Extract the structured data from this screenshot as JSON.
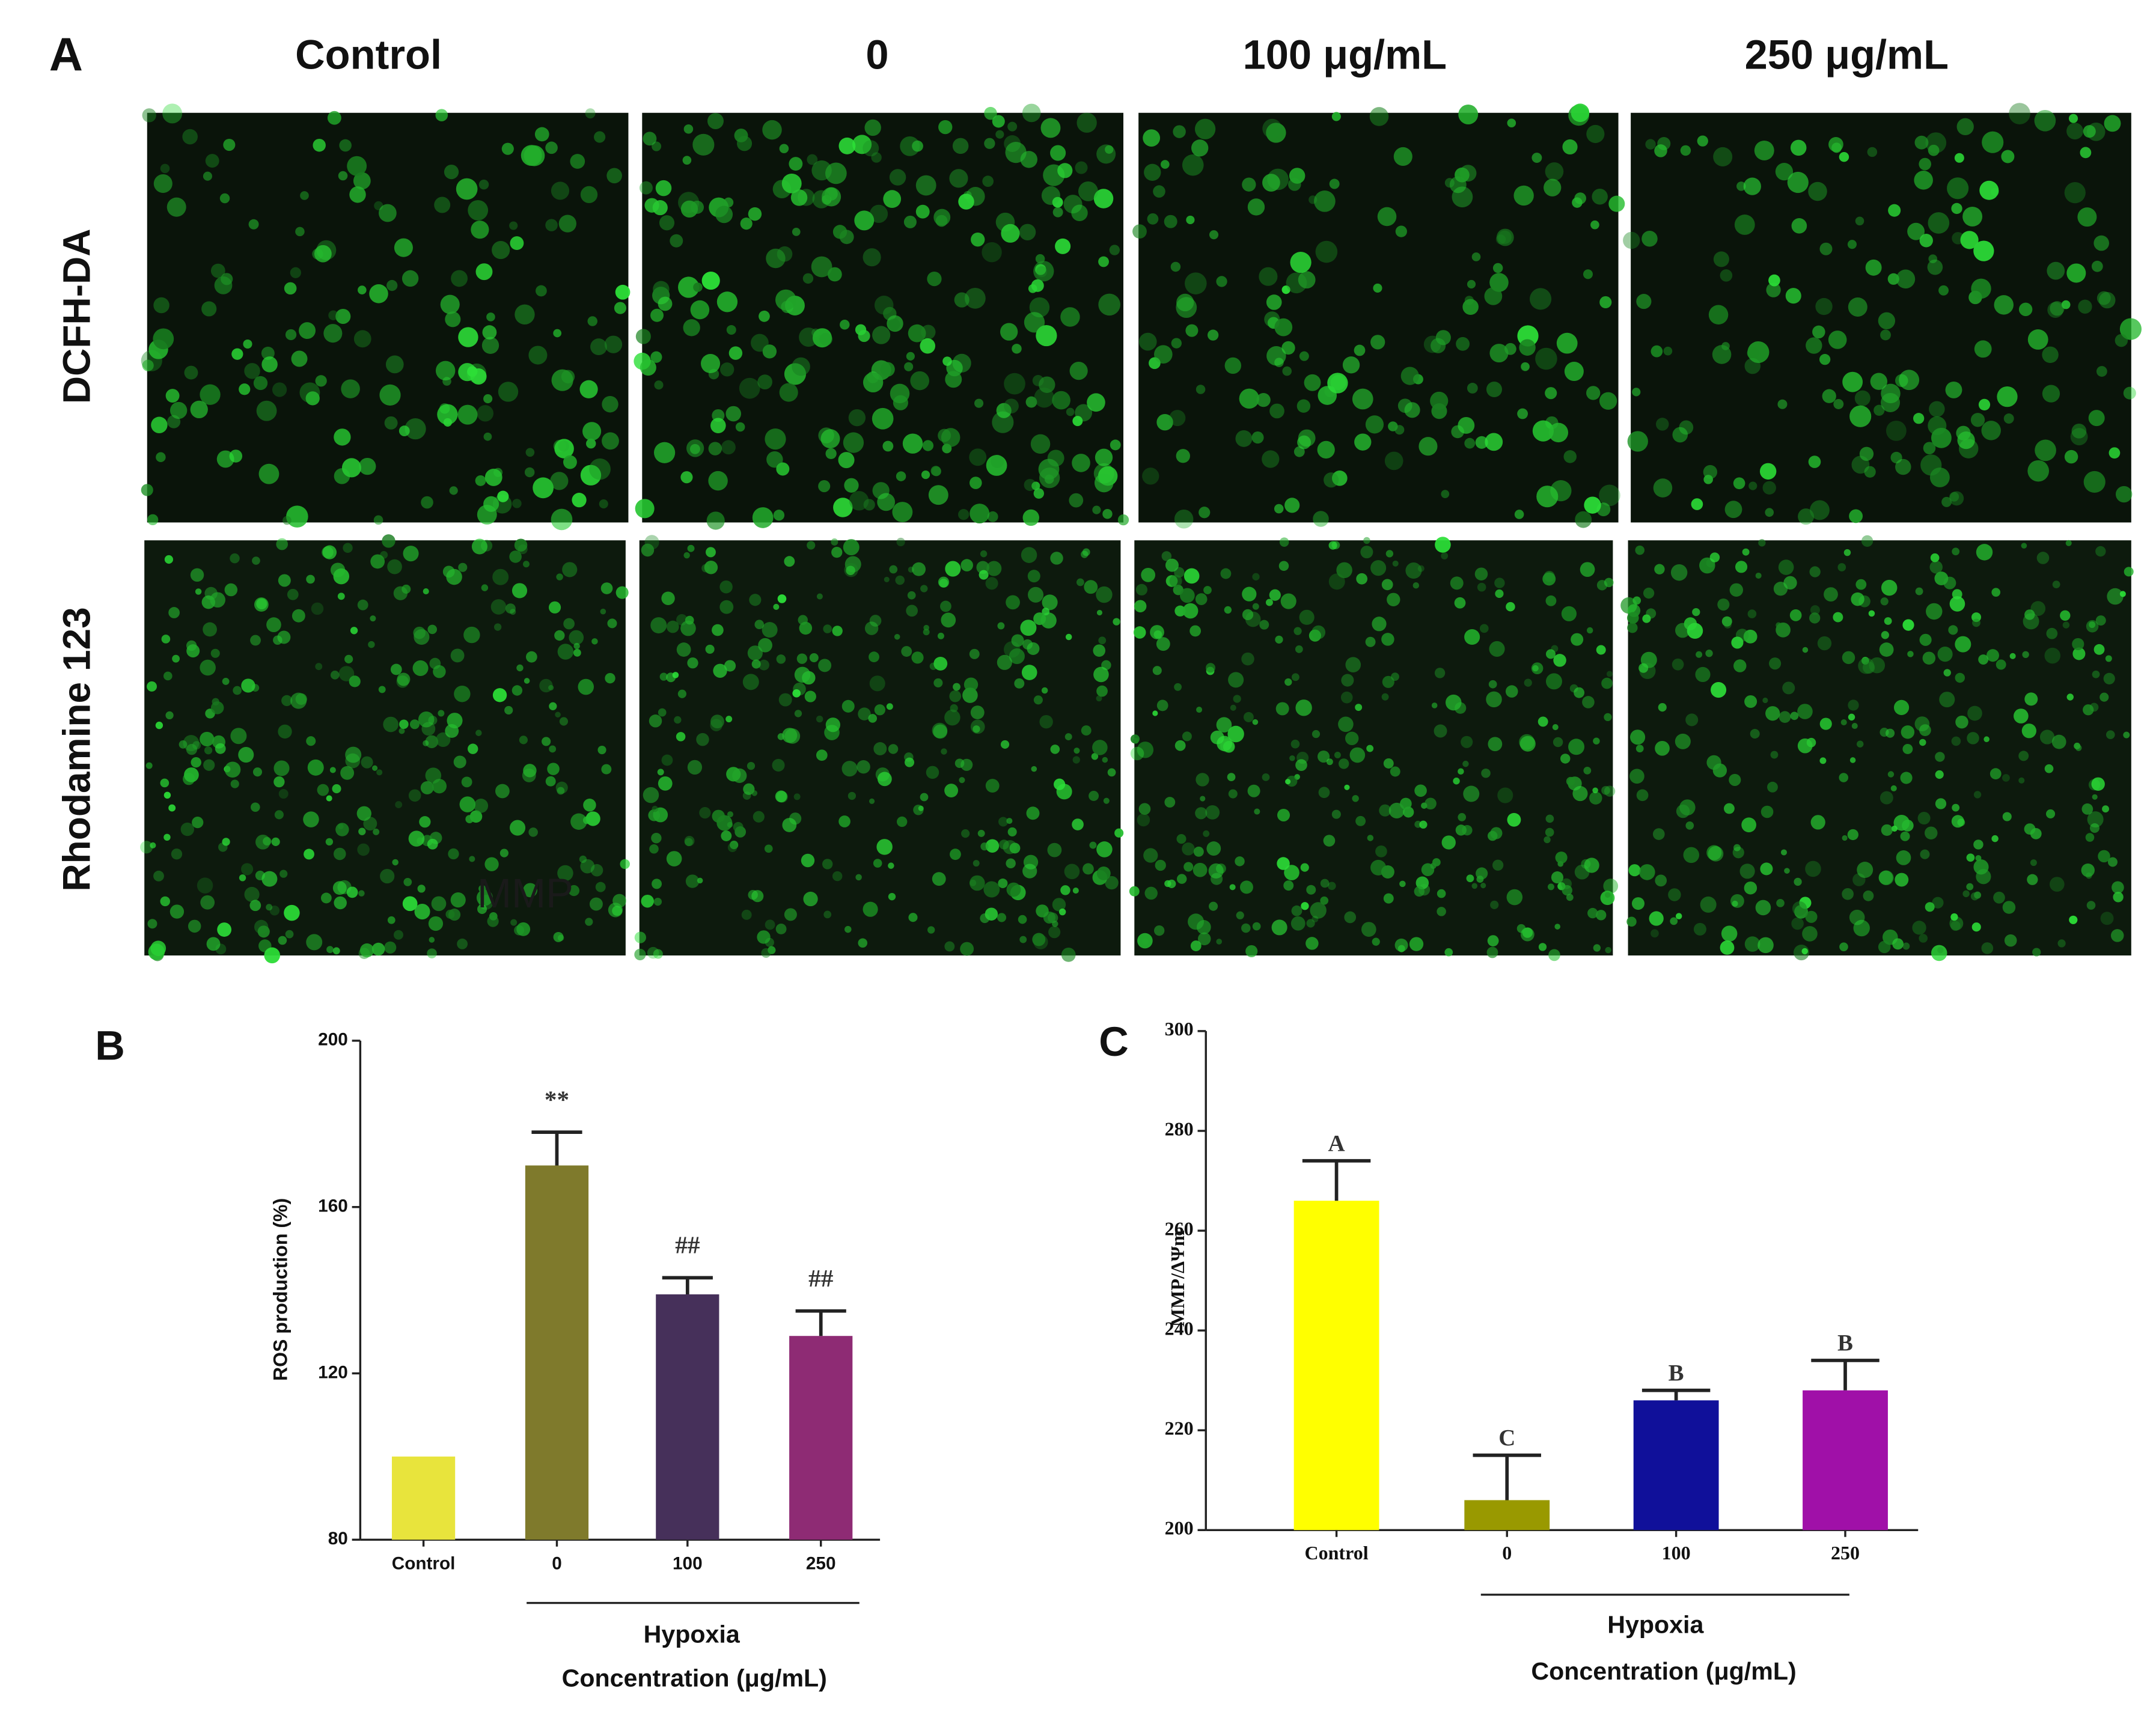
{
  "panel_a": {
    "label": "A",
    "columns": [
      "Control",
      "0",
      "100 μg/mL",
      "250 μg/mL"
    ],
    "rows": [
      "DCFH-DA",
      "Rhodamine 123"
    ],
    "overlay_text": "MMP"
  },
  "chart_data": [
    {
      "type": "bar",
      "panel_label": "B",
      "ylabel": "ROS production (%)",
      "categories": [
        "Control",
        "0",
        "100",
        "250"
      ],
      "values": [
        100,
        170,
        139,
        129
      ],
      "errors": [
        0,
        8,
        4,
        6
      ],
      "annotations": [
        null,
        "**",
        "##",
        "##"
      ],
      "colors": [
        "#e8e43c",
        "#7f7a2c",
        "#46305a",
        "#8e2b74"
      ],
      "ylim": [
        80,
        200
      ],
      "yticks": [
        80,
        120,
        160,
        200
      ],
      "group_label": "Hypoxia",
      "xlabel": "Concentration (μg/mL)"
    },
    {
      "type": "bar",
      "panel_label": "C",
      "ylabel": "MMP/ΔΨm",
      "categories": [
        "Control",
        "0",
        "100",
        "250"
      ],
      "values": [
        266,
        206,
        226,
        228
      ],
      "errors": [
        8,
        9,
        2,
        6
      ],
      "annotations": [
        "A",
        "C",
        "B",
        "B"
      ],
      "colors": [
        "#ffff00",
        "#999900",
        "#10109a",
        "#a010a8"
      ],
      "ylim": [
        200,
        300
      ],
      "yticks": [
        200,
        220,
        240,
        260,
        280,
        300
      ],
      "group_label": "Hypoxia",
      "xlabel": "Concentration (μg/mL)"
    }
  ]
}
